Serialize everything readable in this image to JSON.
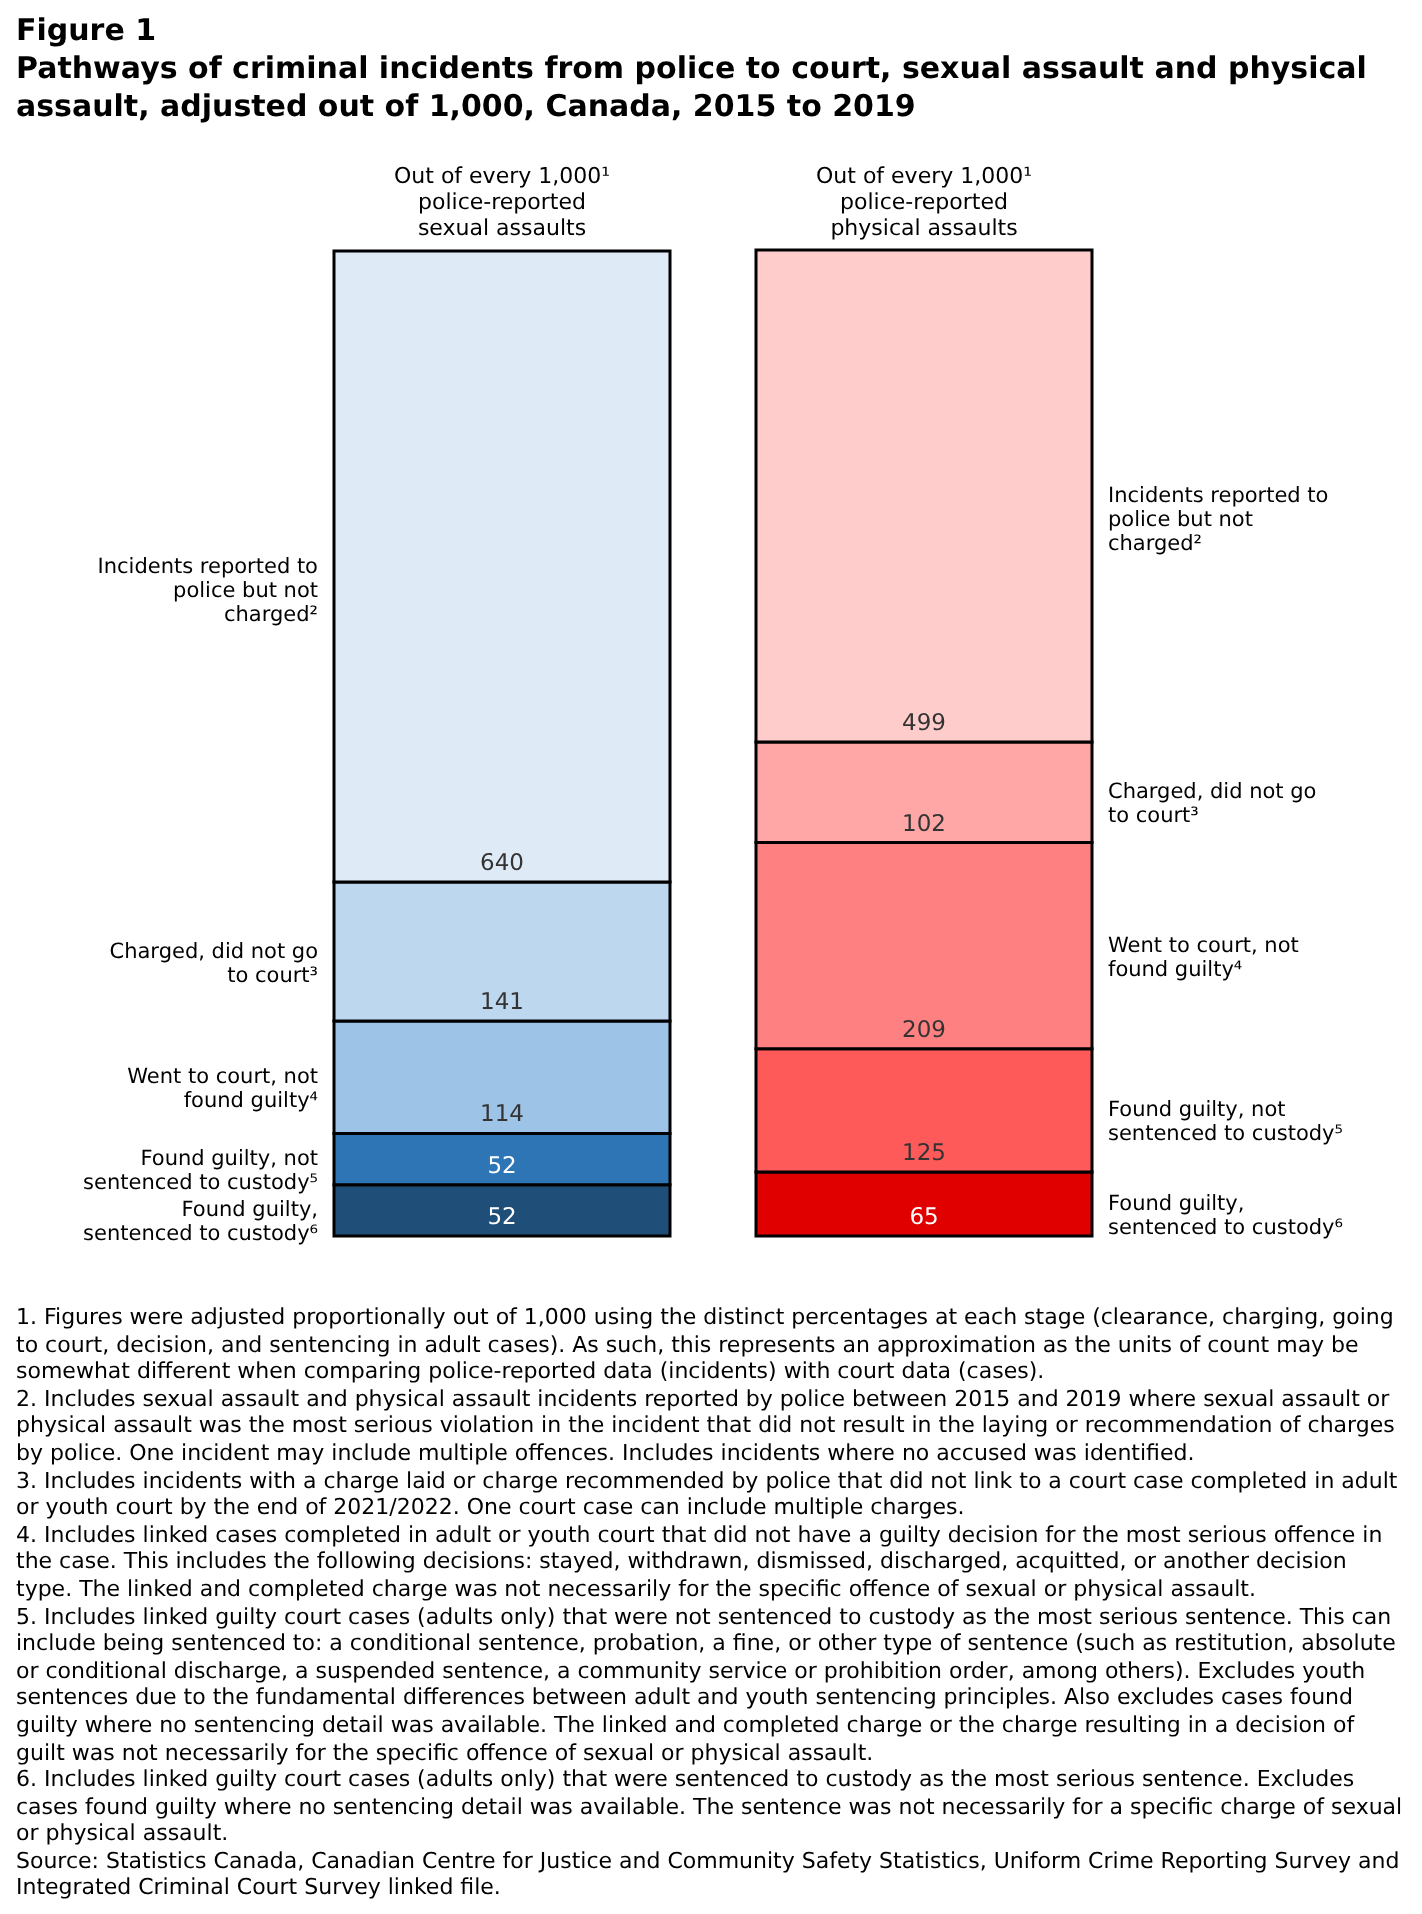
{
  "chart_data": {
    "type": "bar",
    "title": "Figure 1",
    "subtitle": "Pathways of criminal incidents from police to court, sexual assault and physical assault, adjusted out of 1,000, Canada, 2015 to 2019",
    "stacked": true,
    "data_labels": true,
    "categories": [
      "Out of every 1,000¹ police-reported sexual assaults",
      "Out of every 1,000¹ police-reported physical assaults"
    ],
    "series": [
      {
        "name": "Found guilty, sentenced to custody⁶",
        "colors": [
          "#1f4e79",
          "#e00000"
        ],
        "values": [
          52,
          65
        ]
      },
      {
        "name": "Found guilty, not sentenced to custody⁵",
        "colors": [
          "#2e75b6",
          "#ff5a5a"
        ],
        "values": [
          52,
          125
        ]
      },
      {
        "name": "Went to court, not found guilty⁴",
        "colors": [
          "#9dc3e6",
          "#ff8080"
        ],
        "values": [
          114,
          209
        ]
      },
      {
        "name": "Charged, did not go to court³",
        "colors": [
          "#bdd7ee",
          "#ffa6a6"
        ],
        "values": [
          141,
          102
        ]
      },
      {
        "name": "Incidents reported to police but not charged²",
        "colors": [
          "#deebf7",
          "#ffcccc"
        ],
        "values": [
          640,
          499
        ]
      }
    ],
    "annotations": [
      "1. Figures were adjusted proportionally out of 1,000 using the distinct percentages at each stage (clearance, charging, going to court, decision, and sentencing in adult cases). As such, this represents an approximation as the units of count may be somewhat different when comparing police-reported data (incidents) with court data (cases).",
      "2. Includes sexual assault and physical assault incidents reported by police between 2015 and 2019 where sexual assault or physical assault was the most serious violation in the incident that did not result in the laying or recommendation of charges by police. One incident may include multiple offences. Includes incidents where no accused was identified.",
      "3. Includes incidents with a charge laid or charge recommended by police that did not link to a court case completed in adult or youth court by the end of 2021/2022. One court case can include multiple charges.",
      "4. Includes linked cases completed in adult or youth court that did not have a guilty decision for the most serious offence in the case. This includes the following decisions: stayed, withdrawn, dismissed, discharged, acquitted, or another decision type. The linked and completed charge was not necessarily for the specific offence of sexual or physical assault.",
      "5. Includes linked guilty court cases (adults only) that were not sentenced to custody as the most serious sentence. This can include being sentenced to: a conditional sentence, probation, a fine, or other type of sentence (such as restitution, absolute or conditional discharge, a suspended sentence, a community service or prohibition order, among others). Excludes youth sentences due to the fundamental differences between adult and youth sentencing principles. Also excludes cases found guilty where no sentencing detail was available. The linked and completed charge or the charge resulting in a decision of guilt was not necessarily for the specific offence of sexual or physical assault.",
      "6. Includes linked guilty court cases (adults only) that were sentenced to custody as the most serious sentence. Excludes cases found guilty where no sentencing detail was available. The sentence was not necessarily for a specific charge of sexual or physical assault.",
      "Source: Statistics Canada, Canadian Centre for Justice and Community Safety Statistics, Uniform Crime Reporting Survey and Integrated Criminal Court Survey linked file."
    ]
  }
}
